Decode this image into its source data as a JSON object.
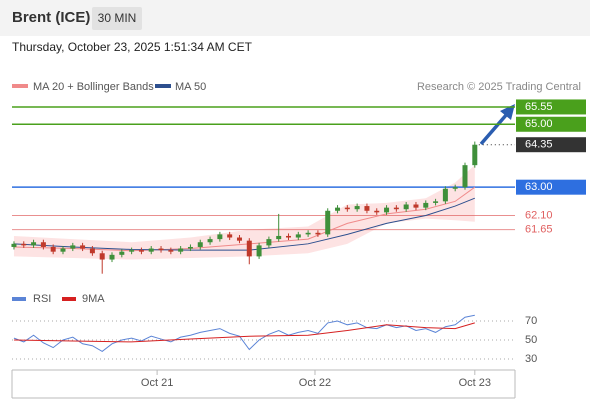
{
  "header": {
    "title": "Brent (ICE)",
    "interval": "30 MIN",
    "timestamp": "Thursday, October 23, 2025 1:51:34 AM CET"
  },
  "chart_data": [
    {
      "type": "candlestick",
      "legend": [
        "MA 20 + Bollinger Bands",
        "MA 50"
      ],
      "source": "Research © 2025 Trading Central",
      "xlim": [
        -0.2,
        51.1
      ],
      "xticks": [
        {
          "value": 14.6,
          "label": "Oct 21"
        },
        {
          "value": 30.7,
          "label": "Oct 22"
        },
        {
          "value": 47,
          "label": "Oct 23"
        }
      ],
      "ylim": [
        60.05,
        65.93
      ],
      "open": [
        61.1,
        61.2,
        61.15,
        61.25,
        61.1,
        60.95,
        61.05,
        61.15,
        61.05,
        60.9,
        60.7,
        60.85,
        60.95,
        61.0,
        60.95,
        61.05,
        61.0,
        60.95,
        61.05,
        61.1,
        61.25,
        61.35,
        61.5,
        61.4,
        61.3,
        60.8,
        61.15,
        61.35,
        61.45,
        61.4,
        61.5,
        61.55,
        61.5,
        62.25,
        62.35,
        62.3,
        62.4,
        62.25,
        62.2,
        62.35,
        62.3,
        62.45,
        62.35,
        62.5,
        62.55,
        62.95,
        63.0,
        63.7
      ],
      "high": [
        61.28,
        61.28,
        61.33,
        61.33,
        61.18,
        61.13,
        61.23,
        61.23,
        61.13,
        60.98,
        60.93,
        61.03,
        61.08,
        61.08,
        61.13,
        61.13,
        61.08,
        61.13,
        61.18,
        61.33,
        61.43,
        61.58,
        61.58,
        61.48,
        61.38,
        61.23,
        61.43,
        62.15,
        61.53,
        61.58,
        61.63,
        61.63,
        62.33,
        62.43,
        62.43,
        62.48,
        62.48,
        62.33,
        62.43,
        62.43,
        62.53,
        62.53,
        62.58,
        62.63,
        63.03,
        63.08,
        63.78,
        64.45
      ],
      "low": [
        61.02,
        61.07,
        61.07,
        61.02,
        60.87,
        60.87,
        60.97,
        60.97,
        60.82,
        60.25,
        60.62,
        60.77,
        60.87,
        60.87,
        60.87,
        60.92,
        60.87,
        60.87,
        60.97,
        61.02,
        61.17,
        61.27,
        61.32,
        61.22,
        60.55,
        60.72,
        61.07,
        61.27,
        61.32,
        61.32,
        61.42,
        61.42,
        61.42,
        62.17,
        62.22,
        62.22,
        62.17,
        62.12,
        62.12,
        62.22,
        62.22,
        62.27,
        62.27,
        62.42,
        62.47,
        62.87,
        62.92,
        63.62
      ],
      "close": [
        61.2,
        61.15,
        61.25,
        61.1,
        60.95,
        61.05,
        61.15,
        61.05,
        60.9,
        60.7,
        60.85,
        60.95,
        61.0,
        60.95,
        61.05,
        61.0,
        60.95,
        61.05,
        61.1,
        61.25,
        61.35,
        61.5,
        61.4,
        61.3,
        60.8,
        61.15,
        61.35,
        61.45,
        61.4,
        61.5,
        61.55,
        61.5,
        62.25,
        62.35,
        62.3,
        62.4,
        62.25,
        62.2,
        62.35,
        62.3,
        62.45,
        62.35,
        62.5,
        62.55,
        62.95,
        63.0,
        63.7,
        64.35
      ],
      "up_color": "#3f8f3a",
      "down_color": "#c0392b",
      "ma_x": [
        0,
        6,
        12,
        18,
        24,
        30,
        34,
        38,
        42,
        45,
        47
      ],
      "ma20": [
        61.1,
        61.05,
        60.98,
        61.05,
        61.2,
        61.35,
        61.85,
        62.15,
        62.3,
        62.55,
        63.0
      ],
      "ma50": [
        61.2,
        61.1,
        61.02,
        61.0,
        61.0,
        61.2,
        61.5,
        61.85,
        62.1,
        62.4,
        62.65
      ],
      "bb_upper": [
        61.45,
        61.35,
        61.25,
        61.4,
        61.65,
        61.75,
        62.45,
        62.5,
        62.65,
        63.15,
        63.7
      ],
      "bb_lower": [
        60.8,
        60.75,
        60.7,
        60.75,
        60.8,
        60.9,
        61.2,
        61.85,
        62.0,
        61.95,
        61.9
      ],
      "ma20_color": "#f08a8a",
      "ma50_color": "#2d4f8e",
      "band_color": "#fde3e3",
      "levels": [
        {
          "value": 65.55,
          "label": "65.55",
          "color": "#4aa01c",
          "style": "box"
        },
        {
          "value": 65,
          "label": "65.00",
          "color": "#4aa01c",
          "style": "box"
        },
        {
          "value": 64.35,
          "label": "64.35",
          "color": "#333333",
          "style": "current"
        },
        {
          "value": 63,
          "label": "63.00",
          "color": "#2e6fe0",
          "style": "box"
        },
        {
          "value": 62.1,
          "label": "62.10",
          "color": "#e06060",
          "style": "text"
        },
        {
          "value": 61.65,
          "label": "61.65",
          "color": "#e06060",
          "style": "text"
        }
      ]
    },
    {
      "type": "line",
      "legend": [
        "RSI",
        "9MA"
      ],
      "ylim": [
        20,
        85
      ],
      "yticks": [
        70,
        50,
        30
      ],
      "grid": true,
      "rsi": [
        52,
        48,
        55,
        47,
        42,
        50,
        53,
        46,
        44,
        38,
        46,
        50,
        52,
        49,
        54,
        51,
        48,
        53,
        55,
        58,
        60,
        62,
        57,
        54,
        40,
        50,
        56,
        60,
        55,
        58,
        60,
        57,
        68,
        70,
        66,
        68,
        63,
        62,
        66,
        63,
        65,
        60,
        62,
        58,
        64,
        66,
        74,
        76
      ],
      "ma_x": [
        0,
        6,
        12,
        18,
        24,
        30,
        34,
        38,
        42,
        45,
        47
      ],
      "ma9": [
        50,
        49,
        48,
        51,
        54,
        55,
        60,
        66,
        63,
        62,
        68
      ],
      "rsi_color": "#5b84d6",
      "ma9_color": "#d62020"
    }
  ]
}
